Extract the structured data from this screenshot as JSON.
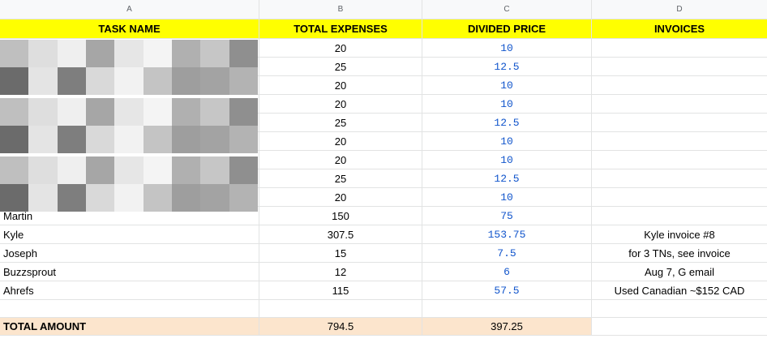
{
  "columns": [
    "A",
    "B",
    "C",
    "D"
  ],
  "headers": {
    "task_name": "TASK NAME",
    "total_expenses": "TOTAL EXPENSES",
    "divided_price": "DIVIDED PRICE",
    "invoices": "INVOICES"
  },
  "rows": [
    {
      "task": "",
      "expense": "20",
      "price": "10",
      "invoice": ""
    },
    {
      "task": "",
      "expense": "25",
      "price": "12.5",
      "invoice": ""
    },
    {
      "task": "",
      "expense": "20",
      "price": "10",
      "invoice": ""
    },
    {
      "task": "",
      "expense": "20",
      "price": "10",
      "invoice": ""
    },
    {
      "task": "",
      "expense": "25",
      "price": "12.5",
      "invoice": ""
    },
    {
      "task": "",
      "expense": "20",
      "price": "10",
      "invoice": ""
    },
    {
      "task": "",
      "expense": "20",
      "price": "10",
      "invoice": ""
    },
    {
      "task": "",
      "expense": "25",
      "price": "12.5",
      "invoice": ""
    },
    {
      "task": "",
      "expense": "20",
      "price": "10",
      "invoice": ""
    },
    {
      "task": "Martin",
      "expense": "150",
      "price": "75",
      "invoice": ""
    },
    {
      "task": "Kyle",
      "expense": "307.5",
      "price": "153.75",
      "invoice": "Kyle invoice #8"
    },
    {
      "task": "Joseph",
      "expense": "15",
      "price": "7.5",
      "invoice": "for 3 TNs, see invoice"
    },
    {
      "task": "Buzzsprout",
      "expense": "12",
      "price": "6",
      "invoice": "Aug 7, G email"
    },
    {
      "task": "Ahrefs",
      "expense": "115",
      "price": "57.5",
      "invoice": "Used Canadian ~$152 CAD"
    }
  ],
  "total": {
    "label": "TOTAL AMOUNT",
    "expense": "794.5",
    "price": "397.25"
  },
  "colors": {
    "header_fill": "#ffff00",
    "total_fill": "#fce5cd",
    "price_text": "#1155cc",
    "redaction_shades": [
      "#bfbfbf",
      "#dedede",
      "#efefef",
      "#a6a6a6",
      "#e6e6e6",
      "#f4f4f4",
      "#b0b0b0",
      "#c6c6c6",
      "#8f8f8f",
      "#6b6b6b",
      "#e4e4e4",
      "#7e7e7e",
      "#d9d9d9",
      "#f2f2f2",
      "#c4c4c4",
      "#9e9e9e",
      "#a3a3a3",
      "#b3b3b3"
    ]
  }
}
